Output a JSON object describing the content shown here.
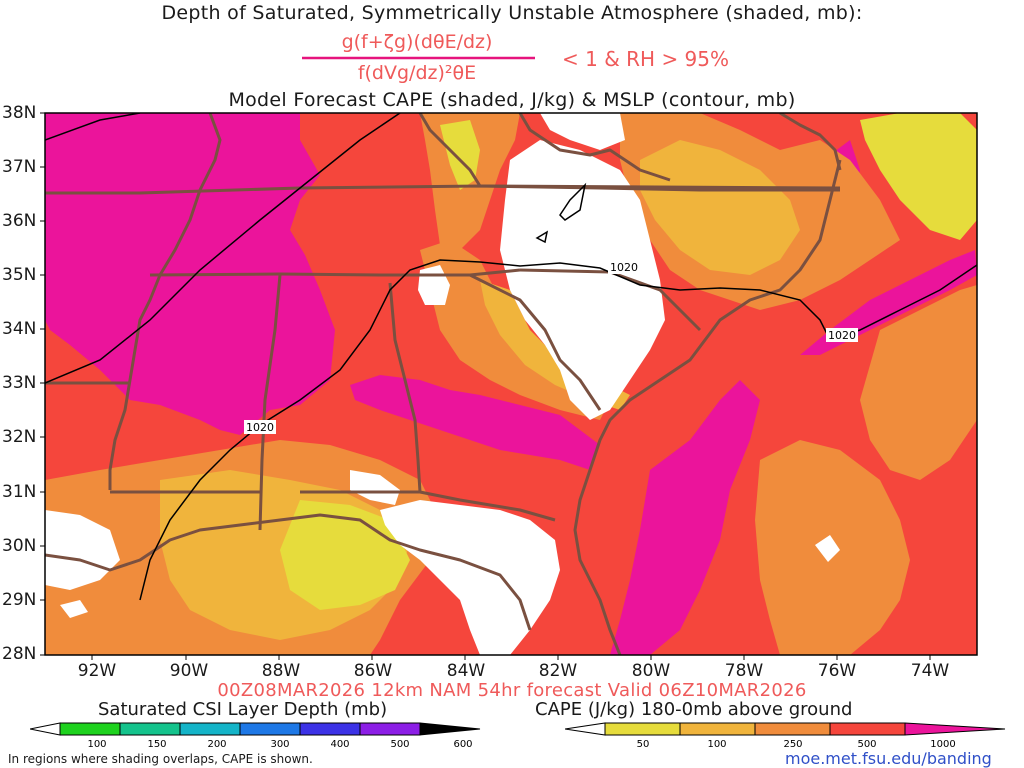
{
  "title_line1": "Depth of Saturated, Symmetrically Unstable Atmosphere (shaded, mb):",
  "formula": {
    "numerator": "g(f+ζg)(dθE/dz)",
    "denominator": "f(dVg/dz)²θE",
    "condition": "< 1 & RH > 95%"
  },
  "title_line3": "Model Forecast CAPE (shaded, J/kg) & MSLP (contour, mb)",
  "valid_line": "00Z08MAR2026 12km NAM 54hr forecast Valid 06Z10MAR2026",
  "map": {
    "lat_labels": [
      "38N",
      "37N",
      "36N",
      "35N",
      "34N",
      "33N",
      "32N",
      "31N",
      "30N",
      "29N",
      "28N"
    ],
    "lon_labels": [
      "92W",
      "90W",
      "88W",
      "86W",
      "84W",
      "82W",
      "80W",
      "78W",
      "76W",
      "74W"
    ],
    "isobar_labels": [
      "1020",
      "1020",
      "1020"
    ],
    "colors": {
      "cape_50": "#e6dc3c",
      "cape_100": "#f0b43c",
      "cape_250": "#f08c3c",
      "cape_500": "#f5463c",
      "cape_1000": "#eb149b",
      "borders": "#7a5040",
      "isobars": "#000000"
    }
  },
  "legend_left": {
    "title": "Saturated CSI Layer Depth (mb)",
    "ticks": [
      "100",
      "150",
      "200",
      "300",
      "400",
      "500",
      "600"
    ],
    "colors": [
      "#ffffff",
      "#1ed21e",
      "#14c38c",
      "#14b4c8",
      "#1e78e6",
      "#3c32e6",
      "#8c1ee6",
      "#000000"
    ]
  },
  "legend_right": {
    "title": "CAPE (J/kg) 180-0mb above ground",
    "ticks": [
      "50",
      "100",
      "250",
      "500",
      "1000"
    ],
    "colors": [
      "#ffffff",
      "#e6dc3c",
      "#f0b43c",
      "#f08c3c",
      "#f5463c",
      "#eb149b"
    ]
  },
  "footnote": "In regions where shading overlaps, CAPE is shown.",
  "url": "moe.met.fsu.edu/banding"
}
